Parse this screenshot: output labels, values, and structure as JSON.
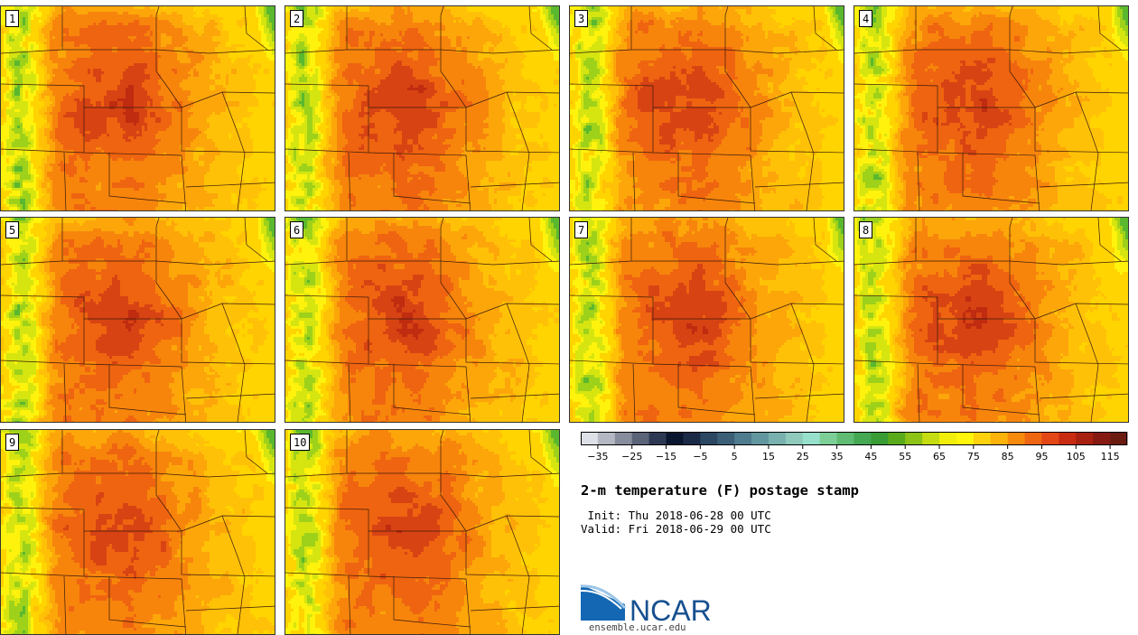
{
  "panels": [
    {
      "label": "1"
    },
    {
      "label": "2"
    },
    {
      "label": "3"
    },
    {
      "label": "4"
    },
    {
      "label": "5"
    },
    {
      "label": "6"
    },
    {
      "label": "7"
    },
    {
      "label": "8"
    },
    {
      "label": "9"
    },
    {
      "label": "10"
    }
  ],
  "colorbar": {
    "tick_labels": [
      "−35",
      "−25",
      "−15",
      "−5",
      "5",
      "15",
      "25",
      "35",
      "45",
      "55",
      "65",
      "75",
      "85",
      "95",
      "105",
      "115"
    ],
    "colors": [
      "#dde0e6",
      "#b4b8c2",
      "#878d9c",
      "#5b6378",
      "#2d3853",
      "#0a1630",
      "#1b2a46",
      "#2b4762",
      "#3c5f78",
      "#4e7b8e",
      "#63979f",
      "#78b1ae",
      "#8fcabc",
      "#97e0cb",
      "#7dcf98",
      "#5fbc72",
      "#45a852",
      "#389b34",
      "#5aab1b",
      "#8dc216",
      "#c4dc11",
      "#f0ee0a",
      "#fff60c",
      "#fdd10c",
      "#fbb20b",
      "#f7890c",
      "#ef6612",
      "#e44716",
      "#c82b10",
      "#a72010",
      "#861911",
      "#6b1b10"
    ],
    "range": [
      -40,
      120
    ]
  },
  "title": "2-m temperature (F) postage stamp",
  "init_line": " Init: Thu 2018-06-28 00 UTC",
  "valid_line": "Valid: Fri 2018-06-29 00 UTC",
  "logo_text": "NCAR",
  "site_text": "ensemble.ucar.edu"
}
